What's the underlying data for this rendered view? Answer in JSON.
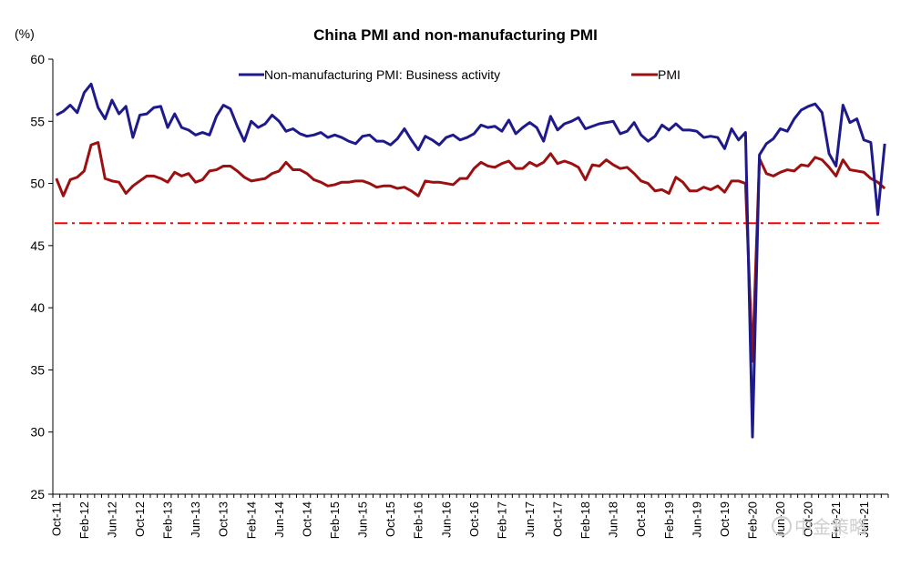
{
  "chart_data": {
    "type": "line",
    "title": "China PMI and non-manufacturing PMI",
    "ylabel": "(%)",
    "ylim": [
      25,
      60
    ],
    "yticks": [
      25,
      30,
      35,
      40,
      45,
      50,
      55,
      60
    ],
    "x_start": "Oct-11",
    "x_tick_labels": [
      "Oct-11",
      "Feb-12",
      "Jun-12",
      "Oct-12",
      "Feb-13",
      "Jun-13",
      "Oct-13",
      "Feb-14",
      "Jun-14",
      "Oct-14",
      "Feb-15",
      "Jun-15",
      "Oct-15",
      "Feb-16",
      "Jun-16",
      "Oct-16",
      "Feb-17",
      "Jun-17",
      "Oct-17",
      "Feb-18",
      "Jun-18",
      "Oct-18",
      "Feb-19",
      "Jun-19",
      "Oct-19",
      "Feb-20",
      "Jun-20",
      "Oct-20",
      "Feb-21",
      "Jun-21"
    ],
    "legend_position": "top",
    "grid": false,
    "reference_line": {
      "value": 46.8,
      "color": "#ff0000",
      "style": "dash-dot"
    },
    "series": [
      {
        "name": "Non-manufacturing PMI: Business activity",
        "color": "#1f1a8c",
        "values": [
          55.5,
          55.8,
          56.3,
          55.7,
          57.3,
          58.0,
          56.1,
          55.2,
          56.7,
          55.6,
          56.2,
          53.7,
          55.5,
          55.6,
          56.1,
          56.2,
          54.5,
          55.6,
          54.5,
          54.3,
          53.9,
          54.1,
          53.9,
          55.4,
          56.3,
          56.0,
          54.6,
          53.4,
          55.0,
          54.5,
          54.8,
          55.5,
          55.0,
          54.2,
          54.4,
          54.0,
          53.8,
          53.9,
          54.1,
          53.7,
          53.9,
          53.7,
          53.4,
          53.2,
          53.8,
          53.9,
          53.4,
          53.4,
          53.1,
          53.6,
          54.4,
          53.5,
          52.7,
          53.8,
          53.5,
          53.1,
          53.7,
          53.9,
          53.5,
          53.7,
          54.0,
          54.7,
          54.5,
          54.6,
          54.2,
          55.1,
          54.0,
          54.5,
          54.9,
          54.5,
          53.4,
          55.4,
          54.3,
          54.8,
          55.0,
          55.3,
          54.4,
          54.6,
          54.8,
          54.9,
          55.0,
          54.0,
          54.2,
          54.9,
          53.9,
          53.4,
          53.8,
          54.7,
          54.3,
          54.8,
          54.3,
          54.3,
          54.2,
          53.7,
          53.8,
          53.7,
          52.8,
          54.4,
          53.5,
          54.1,
          29.6,
          52.3,
          53.2,
          53.6,
          54.4,
          54.2,
          55.2,
          55.9,
          56.2,
          56.4,
          55.7,
          52.4,
          51.4,
          56.3,
          54.9,
          55.2,
          53.5,
          53.3,
          47.5,
          53.2
        ]
      },
      {
        "name": "PMI",
        "color": "#9b1010",
        "values": [
          50.4,
          49.0,
          50.3,
          50.5,
          51.0,
          53.1,
          53.3,
          50.4,
          50.2,
          50.1,
          49.2,
          49.8,
          50.2,
          50.6,
          50.6,
          50.4,
          50.1,
          50.9,
          50.6,
          50.8,
          50.1,
          50.3,
          51.0,
          51.1,
          51.4,
          51.4,
          51.0,
          50.5,
          50.2,
          50.3,
          50.4,
          50.8,
          51.0,
          51.7,
          51.1,
          51.1,
          50.8,
          50.3,
          50.1,
          49.8,
          49.9,
          50.1,
          50.1,
          50.2,
          50.2,
          50.0,
          49.7,
          49.8,
          49.8,
          49.6,
          49.7,
          49.4,
          49.0,
          50.2,
          50.1,
          50.1,
          50.0,
          49.9,
          50.4,
          50.4,
          51.2,
          51.7,
          51.4,
          51.3,
          51.6,
          51.8,
          51.2,
          51.2,
          51.7,
          51.4,
          51.7,
          52.4,
          51.6,
          51.8,
          51.6,
          51.3,
          50.3,
          51.5,
          51.4,
          51.9,
          51.5,
          51.2,
          51.3,
          50.8,
          50.2,
          50.0,
          49.4,
          49.5,
          49.2,
          50.5,
          50.1,
          49.4,
          49.4,
          49.7,
          49.5,
          49.8,
          49.3,
          50.2,
          50.2,
          50.0,
          35.7,
          52.0,
          50.8,
          50.6,
          50.9,
          51.1,
          51.0,
          51.5,
          51.4,
          52.1,
          51.9,
          51.3,
          50.6,
          51.9,
          51.1,
          51.0,
          50.9,
          50.4,
          50.1,
          49.6
        ]
      }
    ]
  },
  "watermark": "中金策略"
}
